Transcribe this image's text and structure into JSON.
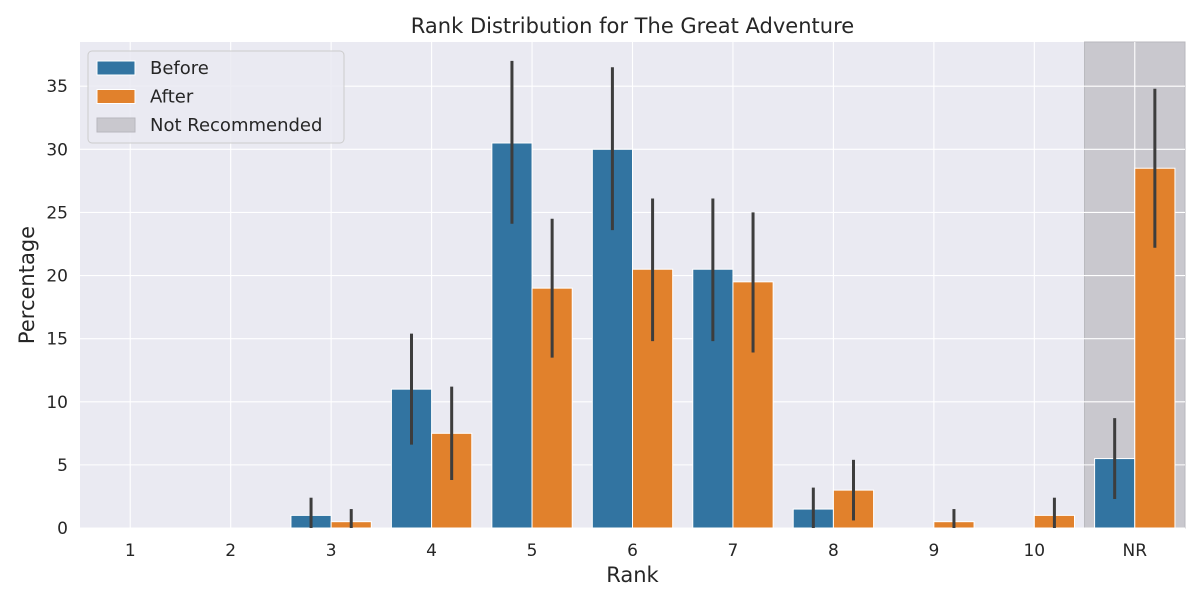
{
  "chart_data": {
    "type": "bar",
    "title": "Rank Distribution for The Great Adventure",
    "xlabel": "Rank",
    "ylabel": "Percentage",
    "categories": [
      "1",
      "2",
      "3",
      "4",
      "5",
      "6",
      "7",
      "8",
      "9",
      "10",
      "NR"
    ],
    "ylim": [
      0,
      38.5
    ],
    "yticks": [
      0,
      5,
      10,
      15,
      20,
      25,
      30,
      35
    ],
    "grid": true,
    "legend_position": "top-left",
    "highlight_region": {
      "category": "NR",
      "label": "Not Recommended",
      "color": "#c9c8ce"
    },
    "series": [
      {
        "name": "Before",
        "color": "#3274a1",
        "values": [
          0,
          0,
          1.0,
          11.0,
          30.5,
          30.0,
          20.5,
          1.5,
          0,
          0,
          5.5
        ],
        "error_low": [
          0,
          0,
          0,
          6.6,
          24.1,
          23.6,
          14.8,
          0,
          0,
          0,
          2.3
        ],
        "error_high": [
          0,
          0,
          2.4,
          15.4,
          37.0,
          36.5,
          26.1,
          3.2,
          0,
          0,
          8.7
        ]
      },
      {
        "name": "After",
        "color": "#e1812c",
        "values": [
          0,
          0,
          0.5,
          7.5,
          19.0,
          20.5,
          19.5,
          3.0,
          0.5,
          1.0,
          28.5
        ],
        "error_low": [
          0,
          0,
          0,
          3.8,
          13.5,
          14.8,
          13.9,
          0.6,
          0,
          0,
          22.2
        ],
        "error_high": [
          0,
          0,
          1.5,
          11.2,
          24.5,
          26.1,
          25.0,
          5.4,
          1.5,
          2.4,
          34.8
        ]
      }
    ]
  }
}
